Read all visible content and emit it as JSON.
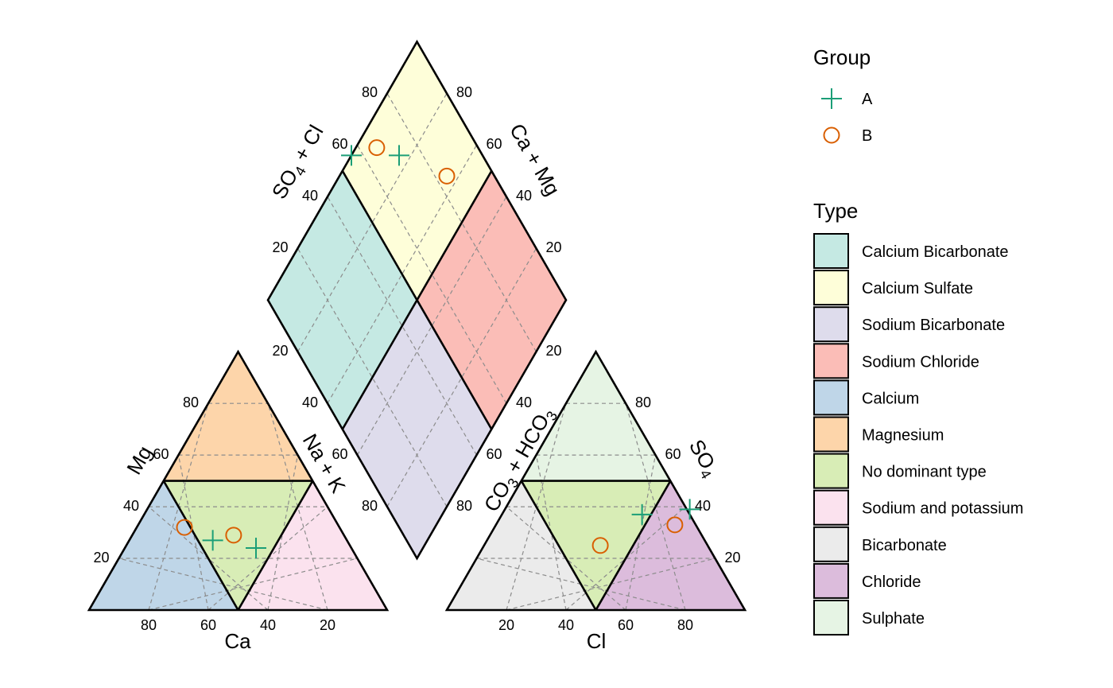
{
  "chart_data": {
    "type": "piper",
    "axes": {
      "cation": {
        "bottom": "Ca",
        "left": "Mg",
        "right": "Na + K"
      },
      "anion": {
        "bottom": "Cl",
        "left_sub": [
          "CO",
          "3",
          " + HCO",
          "3"
        ],
        "right": "SO",
        "right_sub": "4"
      },
      "diamond": {
        "left_pre": "SO",
        "left_sub": "4",
        "left_post": " + Cl",
        "right": "Ca + Mg"
      },
      "ticks": [
        "20",
        "40",
        "60",
        "80"
      ]
    },
    "types": [
      {
        "name": "Calcium Bicarbonate",
        "color": "#c5e9e3"
      },
      {
        "name": "Calcium Sulfate",
        "color": "#fefed9"
      },
      {
        "name": "Sodium Bicarbonate",
        "color": "#dedcec"
      },
      {
        "name": "Sodium Chloride",
        "color": "#fbbdb7"
      },
      {
        "name": "Calcium",
        "color": "#bfd6e8"
      },
      {
        "name": "Magnesium",
        "color": "#fdd5aa"
      },
      {
        "name": "No dominant type",
        "color": "#d8edb6"
      },
      {
        "name": "Sodium and potassium",
        "color": "#fbe2ee"
      },
      {
        "name": "Bicarbonate",
        "color": "#ebebeb"
      },
      {
        "name": "Chloride",
        "color": "#dcbcdc"
      },
      {
        "name": "Sulphate",
        "color": "#e6f4e4"
      }
    ],
    "groups": [
      {
        "name": "A",
        "marker": "plus",
        "color": "#1b9e77"
      },
      {
        "name": "B",
        "marker": "circle",
        "color": "#d95f02"
      }
    ],
    "samples": [
      {
        "group": "A",
        "Ca": 45,
        "Mg": 27,
        "NaK": 28,
        "Cl": 47,
        "SO4": 37,
        "HCO3": 16
      },
      {
        "group": "A",
        "Ca": 32,
        "Mg": 24,
        "NaK": 44,
        "Cl": 62,
        "SO4": 39,
        "HCO3": -1
      },
      {
        "group": "B",
        "Ca": 52,
        "Mg": 32,
        "NaK": 16,
        "Cl": 39,
        "SO4": 25,
        "HCO3": 36
      },
      {
        "group": "B",
        "Ca": 37,
        "Mg": 29,
        "NaK": 34,
        "Cl": 60,
        "SO4": 33,
        "HCO3": 7
      }
    ],
    "legend": {
      "group_title": "Group",
      "type_title": "Type",
      "position": "right"
    }
  }
}
